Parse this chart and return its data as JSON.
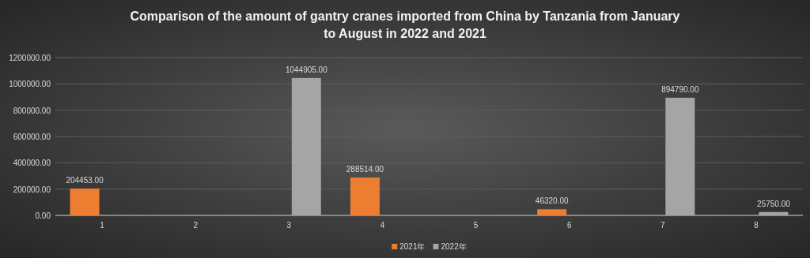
{
  "chart_data": {
    "type": "bar",
    "title": "Comparison of the amount of gantry cranes imported from China by Tanzania from January to August in 2022 and 2021",
    "categories": [
      "1",
      "2",
      "3",
      "4",
      "5",
      "6",
      "7",
      "8"
    ],
    "series": [
      {
        "name": "2021年",
        "color": "#ed7d31",
        "values": [
          204453,
          null,
          null,
          288514,
          null,
          46320,
          null,
          null
        ],
        "value_labels": [
          "204453.00",
          null,
          null,
          "288514.00",
          null,
          "46320.00",
          null,
          null
        ]
      },
      {
        "name": "2022年",
        "color": "#a5a5a5",
        "values": [
          null,
          null,
          1044905,
          null,
          null,
          null,
          894790,
          25750
        ],
        "value_labels": [
          null,
          null,
          "1044905.00",
          null,
          null,
          null,
          "894790.00",
          "25750.00"
        ]
      }
    ],
    "ylim": [
      0,
      1200000
    ],
    "yticks": [
      {
        "value": 0,
        "label": "0.00"
      },
      {
        "value": 200000,
        "label": "200000.00"
      },
      {
        "value": 400000,
        "label": "400000.00"
      },
      {
        "value": 600000,
        "label": "600000.00"
      },
      {
        "value": 800000,
        "label": "800000.00"
      },
      {
        "value": 1000000,
        "label": "1000000.00"
      },
      {
        "value": 1200000,
        "label": "1200000.00"
      }
    ],
    "grid": "y",
    "legend": "bottom"
  }
}
